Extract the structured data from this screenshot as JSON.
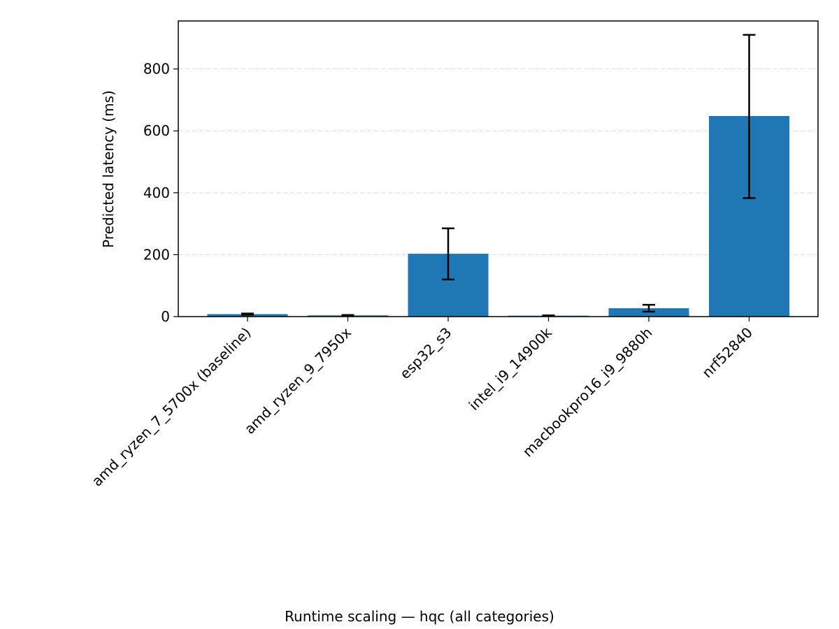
{
  "chart_data": {
    "type": "bar",
    "title": "",
    "caption": "Runtime scaling — hqc (all categories)",
    "xlabel": "",
    "ylabel": "Predicted latency (ms)",
    "categories": [
      "amd_ryzen_7_5700x (baseline)",
      "amd_ryzen_9_7950x",
      "esp32_s3",
      "intel_i9_14900k",
      "macbookpro16_i9_9880h",
      "nrf52840"
    ],
    "values": [
      8,
      4,
      203,
      3,
      27,
      648
    ],
    "error_low": [
      6,
      3,
      120,
      2,
      16,
      383
    ],
    "error_high": [
      10,
      5,
      285,
      4,
      38,
      910
    ],
    "ylim": [
      0,
      955
    ],
    "yticks": [
      0,
      200,
      400,
      600,
      800
    ],
    "grid": "horizontal dashed",
    "bar_color": "#1f77b4",
    "error_color": "#000000"
  }
}
